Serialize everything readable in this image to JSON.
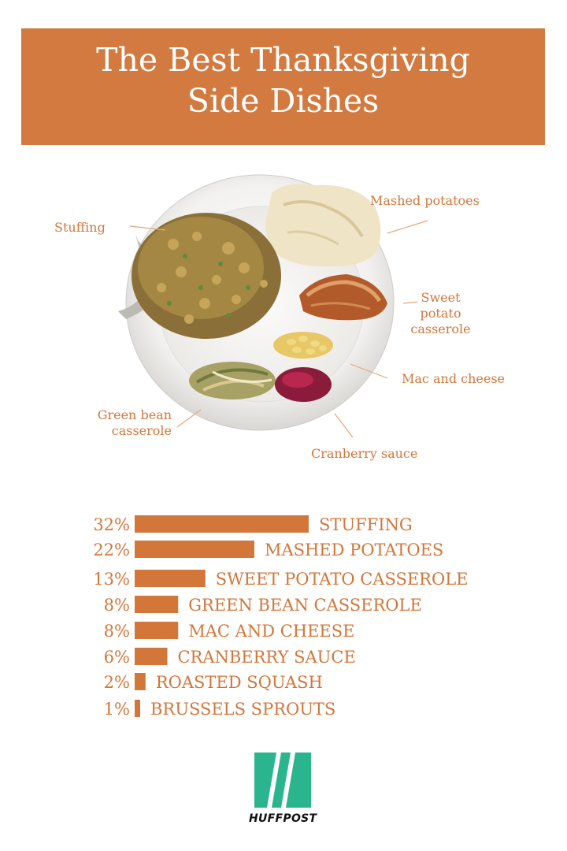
{
  "header": {
    "title_line1": "The Best Thanksgiving",
    "title_line2": "Side Dishes"
  },
  "plate_labels": {
    "stuffing": "Stuffing",
    "mashed": "Mashed potatoes",
    "sweet1": "Sweet",
    "sweet2": "potato",
    "sweet3": "casserole",
    "mac": "Mac and cheese",
    "green1": "Green bean",
    "green2": "casserole",
    "cranberry": "Cranberry sauce"
  },
  "chart_data": {
    "type": "bar",
    "orientation": "horizontal",
    "categories": [
      "STUFFING",
      "MASHED POTATOES",
      "SWEET POTATO CASSEROLE",
      "GREEN BEAN CASSEROLE",
      "MAC AND CHEESE",
      "CRANBERRY SAUCE",
      "ROASTED SQUASH",
      "BRUSSELS SPROUTS"
    ],
    "values": [
      32,
      22,
      13,
      8,
      8,
      6,
      2,
      1
    ],
    "value_labels": [
      "32%",
      "22%",
      "13%",
      "8%",
      "8%",
      "6%",
      "2%",
      "1%"
    ],
    "bar_color": "#d2763a"
  },
  "logo": {
    "text": "HUFFPOST",
    "color": "#2bb58f"
  },
  "colors": {
    "accent": "#d37a40",
    "label": "#d2763a"
  }
}
